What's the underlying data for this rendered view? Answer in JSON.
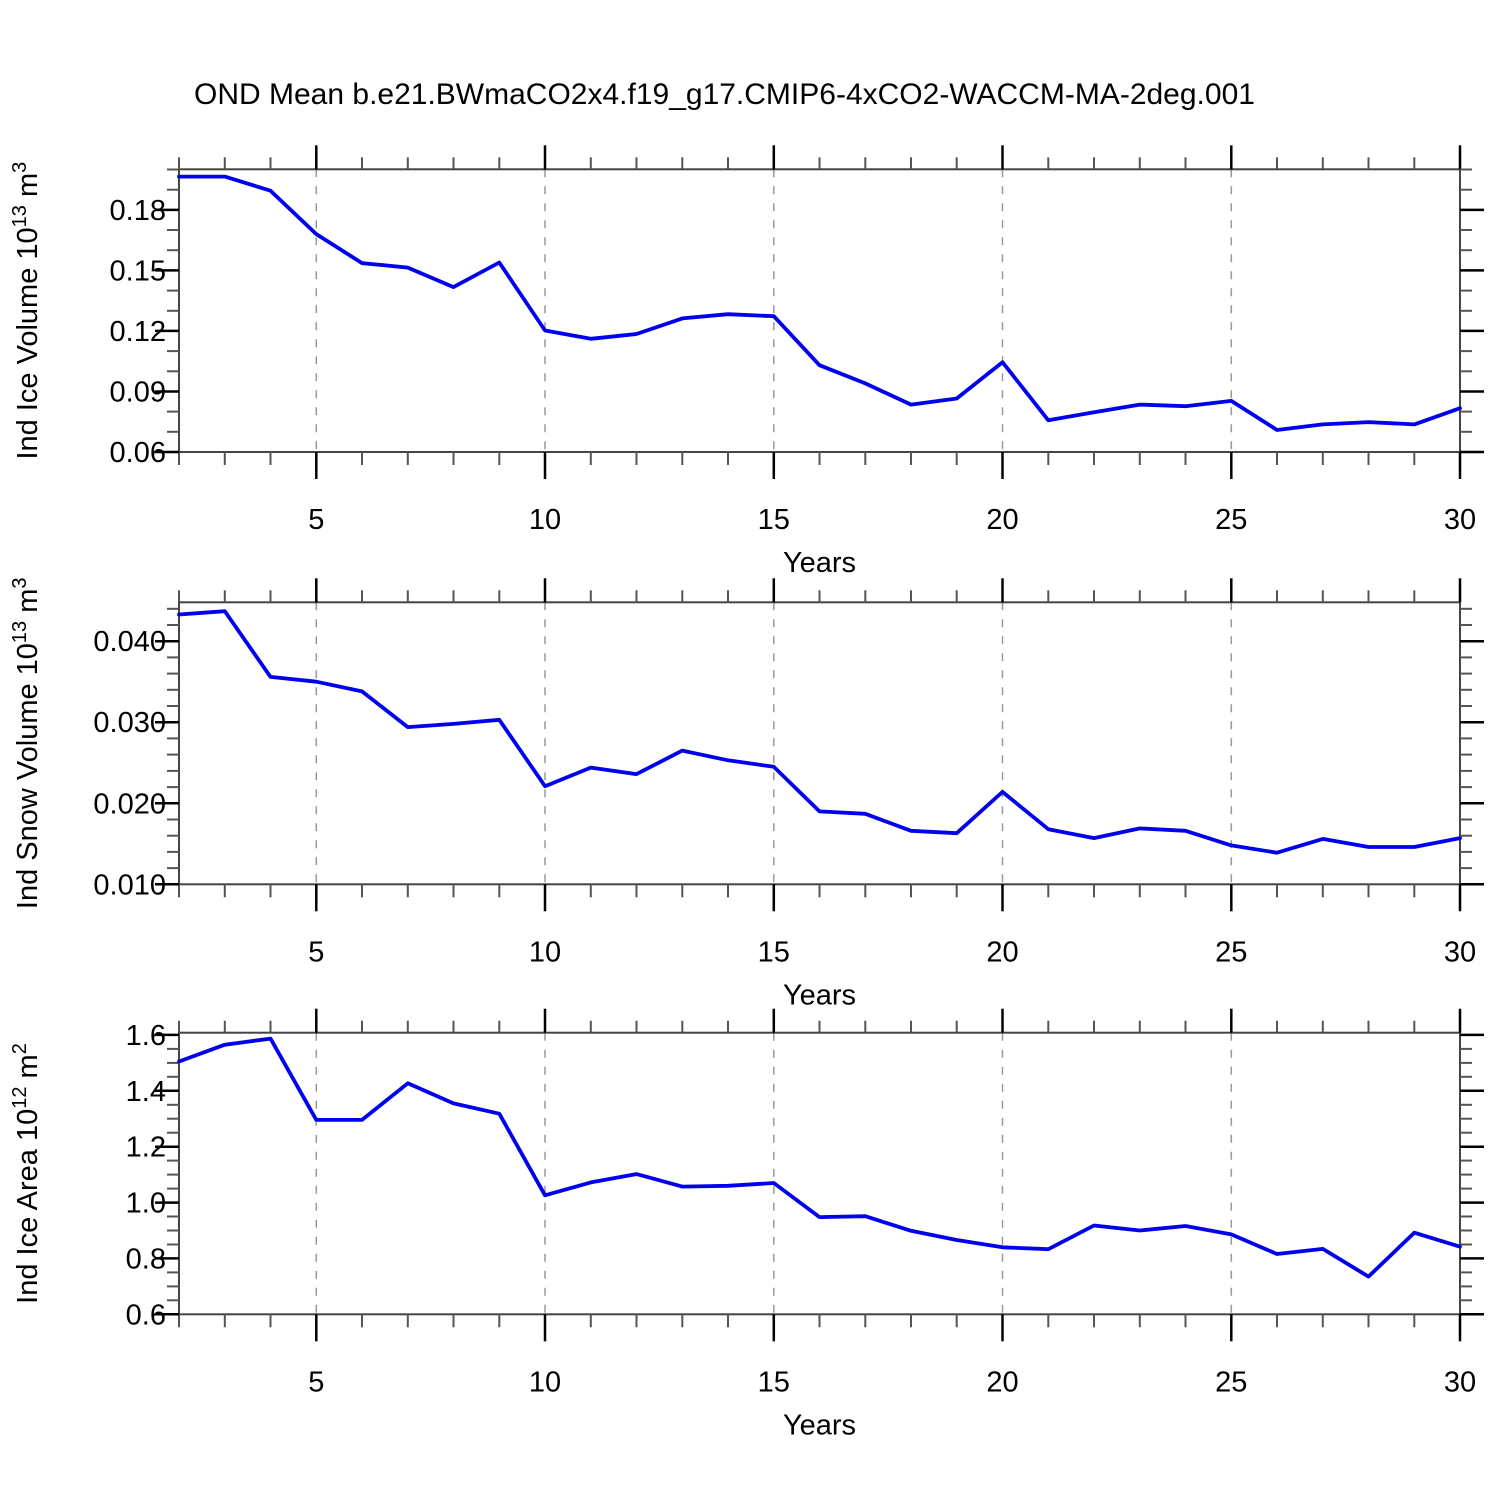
{
  "title": "OND Mean b.e21.BWmaCO2x4.f19_g17.CMIP6-4xCO2-WACCM-MA-2deg.001",
  "style": {
    "line_color": "#0000ee",
    "axis_color": "#444444",
    "major_tick_color": "#000000",
    "minor_tick_color": "#555555",
    "grid_color": "#999999",
    "text_color": "#000000",
    "background": "#ffffff"
  },
  "chart_data": [
    {
      "name": "ice-volume",
      "type": "line",
      "ylabel": "Ind Ice Volume 10^13 m^3",
      "ylabel_parts": [
        {
          "text": "Ind Ice Volume 10",
          "sup": false
        },
        {
          "text": "13",
          "sup": true
        },
        {
          "text": " m",
          "sup": false
        },
        {
          "text": "3",
          "sup": true
        }
      ],
      "xlabel": "Years",
      "x": [
        2,
        3,
        4,
        5,
        6,
        7,
        8,
        9,
        10,
        11,
        12,
        13,
        14,
        15,
        16,
        17,
        18,
        19,
        20,
        21,
        22,
        23,
        24,
        25,
        26,
        27,
        28,
        29,
        30
      ],
      "values": [
        0.1965,
        0.1965,
        0.1895,
        0.168,
        0.1536,
        0.1514,
        0.1417,
        0.1539,
        0.1202,
        0.1161,
        0.1185,
        0.1262,
        0.1283,
        0.1273,
        0.103,
        0.094,
        0.0835,
        0.0865,
        0.1045,
        0.0757,
        0.0797,
        0.0835,
        0.0827,
        0.0853,
        0.0709,
        0.0737,
        0.0748,
        0.0737,
        0.0817
      ],
      "xlim": [
        2,
        30
      ],
      "ylim": [
        0.06,
        0.2001
      ],
      "xticks": [
        5,
        10,
        15,
        20,
        25,
        30
      ],
      "x_minor_step": 1,
      "grid_x": [
        5,
        10,
        15,
        20,
        25
      ],
      "yticks": [
        {
          "v": 0.18,
          "label": "0.18"
        },
        {
          "v": 0.15,
          "label": "0.15"
        },
        {
          "v": 0.12,
          "label": "0.12"
        },
        {
          "v": 0.09,
          "label": "0.09"
        },
        {
          "v": 0.06,
          "label": "0.06"
        }
      ],
      "y_minor_step": 0.01,
      "grid": "x-dashed-only",
      "legend": "none"
    },
    {
      "name": "snow-volume",
      "type": "line",
      "ylabel": "Ind Snow Volume 10^13 m^3",
      "ylabel_parts": [
        {
          "text": "Ind Snow Volume 10",
          "sup": false
        },
        {
          "text": "13",
          "sup": true
        },
        {
          "text": " m",
          "sup": false
        },
        {
          "text": "3",
          "sup": true
        }
      ],
      "xlabel": "Years",
      "x": [
        2,
        3,
        4,
        5,
        6,
        7,
        8,
        9,
        10,
        11,
        12,
        13,
        14,
        15,
        16,
        17,
        18,
        19,
        20,
        21,
        22,
        23,
        24,
        25,
        26,
        27,
        28,
        29,
        30
      ],
      "values": [
        0.0433,
        0.0437,
        0.0356,
        0.035,
        0.0338,
        0.0294,
        0.0298,
        0.0303,
        0.0221,
        0.0244,
        0.0236,
        0.0265,
        0.0253,
        0.0245,
        0.019,
        0.0187,
        0.0166,
        0.0163,
        0.0214,
        0.0168,
        0.0157,
        0.0169,
        0.0166,
        0.0148,
        0.0139,
        0.0156,
        0.0146,
        0.0146,
        0.0157
      ],
      "xlim": [
        2,
        30
      ],
      "ylim": [
        0.01,
        0.0448
      ],
      "xticks": [
        5,
        10,
        15,
        20,
        25,
        30
      ],
      "x_minor_step": 1,
      "grid_x": [
        5,
        10,
        15,
        20,
        25
      ],
      "yticks": [
        {
          "v": 0.04,
          "label": "0.040"
        },
        {
          "v": 0.03,
          "label": "0.030"
        },
        {
          "v": 0.02,
          "label": "0.020"
        },
        {
          "v": 0.01,
          "label": "0.010"
        }
      ],
      "y_minor_step": 0.002,
      "grid": "x-dashed-only",
      "legend": "none"
    },
    {
      "name": "ice-area",
      "type": "line",
      "ylabel": "Ind Ice Area 10^12 m^2",
      "ylabel_parts": [
        {
          "text": "Ind Ice Area 10",
          "sup": false
        },
        {
          "text": "12",
          "sup": true
        },
        {
          "text": " m",
          "sup": false
        },
        {
          "text": "2",
          "sup": true
        }
      ],
      "xlabel": "Years",
      "x": [
        2,
        3,
        4,
        5,
        6,
        7,
        8,
        9,
        10,
        11,
        12,
        13,
        14,
        15,
        16,
        17,
        18,
        19,
        20,
        21,
        22,
        23,
        24,
        25,
        26,
        27,
        28,
        29,
        30
      ],
      "values": [
        1.505,
        1.565,
        1.587,
        1.296,
        1.296,
        1.427,
        1.355,
        1.318,
        1.026,
        1.072,
        1.102,
        1.057,
        1.06,
        1.07,
        0.948,
        0.951,
        0.899,
        0.866,
        0.84,
        0.833,
        0.918,
        0.9,
        0.916,
        0.886,
        0.816,
        0.834,
        0.735,
        0.892,
        0.842
      ],
      "xlim": [
        2,
        30
      ],
      "ylim": [
        0.6,
        1.608
      ],
      "xticks": [
        5,
        10,
        15,
        20,
        25,
        30
      ],
      "x_minor_step": 1,
      "grid_x": [
        5,
        10,
        15,
        20,
        25
      ],
      "yticks": [
        {
          "v": 1.6,
          "label": "1.6"
        },
        {
          "v": 1.4,
          "label": "1.4"
        },
        {
          "v": 1.2,
          "label": "1.2"
        },
        {
          "v": 1.0,
          "label": "1.0"
        },
        {
          "v": 0.8,
          "label": "0.8"
        },
        {
          "v": 0.6,
          "label": "0.6"
        }
      ],
      "y_minor_step": 0.05,
      "grid": "x-dashed-only",
      "legend": "none"
    }
  ]
}
